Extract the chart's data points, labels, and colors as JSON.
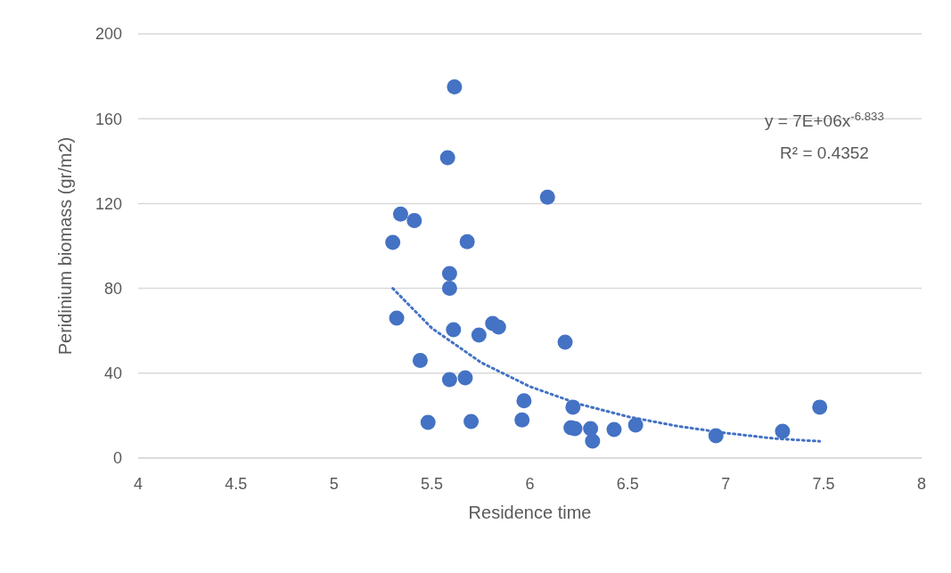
{
  "chart_data": {
    "type": "scatter",
    "xlabel": "Residence time",
    "ylabel": "Peridinium biomass  (gr/m2)",
    "xlim": [
      4,
      8
    ],
    "xticks": [
      4,
      4.5,
      5,
      5.5,
      6,
      6.5,
      7,
      7.5,
      8
    ],
    "ylim": [
      0,
      200
    ],
    "yticks": [
      0,
      40,
      80,
      120,
      160,
      200
    ],
    "grid": "y",
    "marker": "circle",
    "series": [
      {
        "color": "#4472c4",
        "x": [
          5.615,
          5.58,
          6.09,
          5.34,
          5.41,
          5.3,
          5.68,
          5.59,
          5.59,
          5.32,
          5.61,
          5.74,
          5.81,
          5.84,
          6.18,
          5.44,
          5.59,
          5.67,
          5.48,
          5.7,
          5.97,
          5.96,
          6.22,
          6.21,
          6.23,
          6.31,
          6.32,
          6.43,
          6.54,
          6.95,
          7.29,
          7.48
        ],
        "values": [
          175,
          141.6,
          123,
          115,
          112,
          101.7,
          102,
          87,
          80,
          66,
          60.5,
          58,
          63.4,
          61.8,
          54.6,
          46,
          37,
          37.8,
          16.8,
          17.2,
          27,
          18,
          24,
          14.3,
          13.9,
          13.9,
          8,
          13.4,
          15.5,
          10.5,
          12.6,
          24
        ]
      },
      {
        "type": "line",
        "color": "#4472c4",
        "line_style": "dotted",
        "marker": "none",
        "x": [
          5.3,
          5.5,
          5.75,
          6,
          6.25,
          6.5,
          6.75,
          7,
          7.25,
          7.48
        ],
        "values": [
          80,
          61.2,
          45.1,
          33.7,
          25.5,
          19.5,
          15.1,
          11.8,
          9.2,
          7.9
        ]
      }
    ],
    "annotations": [
      "y = 7E+06x$^{-6.833}$",
      "R² = 0.4352"
    ]
  }
}
